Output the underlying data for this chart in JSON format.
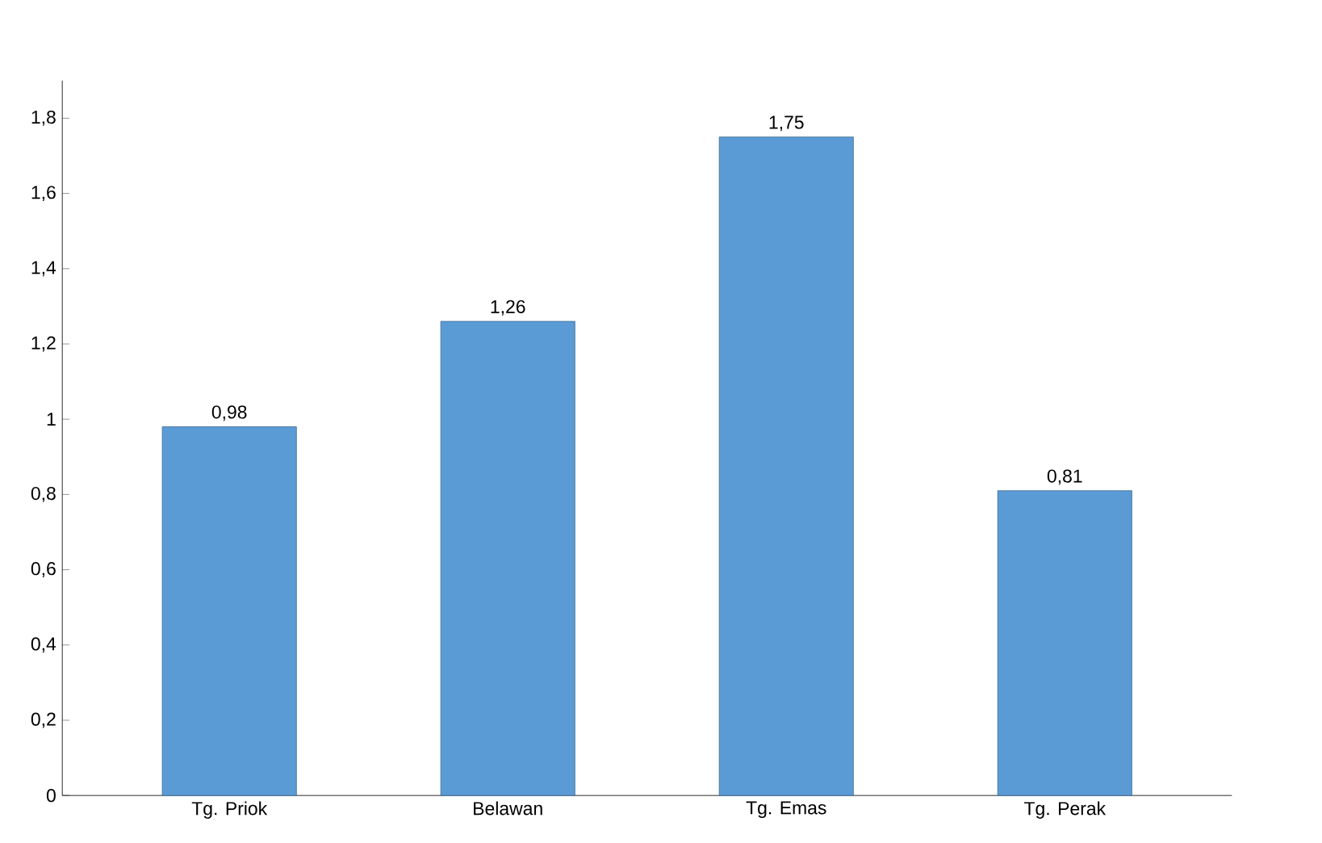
{
  "chart_data": {
    "type": "bar",
    "categories": [
      "Tg. Priok",
      "Belawan",
      "Tg. Emas",
      "Tg. Perak"
    ],
    "values": [
      0.98,
      1.26,
      1.75,
      0.81
    ],
    "value_labels": [
      "0,98",
      "1,26",
      "1,75",
      "0,81"
    ],
    "color": "#5b9bd5",
    "ylim": [
      0,
      1.9
    ],
    "yticks": [
      {
        "value": 0,
        "label": "0"
      },
      {
        "value": 0.2,
        "label": "0,2"
      },
      {
        "value": 0.4,
        "label": "0,4"
      },
      {
        "value": 0.6,
        "label": "0,6"
      },
      {
        "value": 0.8,
        "label": "0,8"
      },
      {
        "value": 1,
        "label": "1"
      },
      {
        "value": 1.2,
        "label": "1,2"
      },
      {
        "value": 1.4,
        "label": "1,4"
      },
      {
        "value": 1.6,
        "label": "1,6"
      },
      {
        "value": 1.8,
        "label": "1,8"
      }
    ],
    "grid": false
  }
}
